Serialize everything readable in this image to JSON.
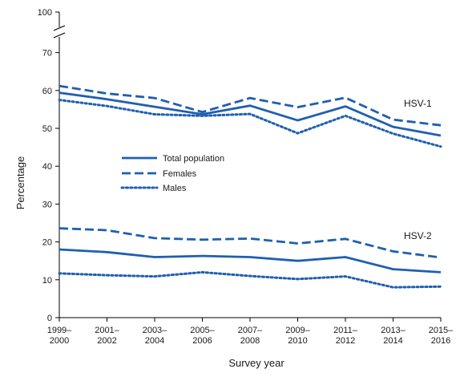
{
  "chart_data": {
    "type": "line",
    "xlabel": "Survey year",
    "ylabel": "Percentage",
    "categories": [
      [
        "1999–",
        "2000"
      ],
      [
        "2001–",
        "2002"
      ],
      [
        "2003–",
        "2004"
      ],
      [
        "2005–",
        "2006"
      ],
      [
        "2007–",
        "2008"
      ],
      [
        "2009–",
        "2010"
      ],
      [
        "2011–",
        "2012"
      ],
      [
        "2013–",
        "2014"
      ],
      [
        "2015–",
        "2016"
      ]
    ],
    "y_ticks": [
      0,
      10,
      20,
      30,
      40,
      50,
      60,
      70,
      100
    ],
    "y_axis_break": [
      70,
      100
    ],
    "ylim": [
      0,
      100
    ],
    "grid": false,
    "legend": {
      "placement": "center-left",
      "entries": [
        {
          "label": "Total population",
          "style": "solid"
        },
        {
          "label": "Females",
          "style": "dashed"
        },
        {
          "label": "Males",
          "style": "dotted"
        }
      ]
    },
    "groups": [
      {
        "label": "HSV-1",
        "series": [
          {
            "name": "Total population",
            "style": "solid",
            "values": [
              59.4,
              57.7,
              55.7,
              53.7,
              56.0,
              52.1,
              55.8,
              50.4,
              48.1
            ]
          },
          {
            "name": "Females",
            "style": "dashed",
            "values": [
              61.2,
              59.2,
              58.0,
              54.3,
              58.0,
              55.6,
              58.1,
              52.3,
              50.8
            ]
          },
          {
            "name": "Males",
            "style": "dotted",
            "values": [
              57.5,
              55.9,
              53.7,
              53.3,
              53.8,
              48.7,
              53.3,
              48.6,
              45.2
            ]
          }
        ]
      },
      {
        "label": "HSV-2",
        "series": [
          {
            "name": "Total population",
            "style": "solid",
            "values": [
              18.0,
              17.3,
              16.0,
              16.3,
              16.0,
              15.0,
              16.0,
              12.8,
              12.0
            ]
          },
          {
            "name": "Females",
            "style": "dashed",
            "values": [
              23.6,
              23.1,
              21.0,
              20.6,
              20.9,
              19.6,
              20.8,
              17.5,
              15.9
            ]
          },
          {
            "name": "Males",
            "style": "dotted",
            "values": [
              11.7,
              11.2,
              10.9,
              12.0,
              11.0,
              10.2,
              10.9,
              8.0,
              8.2
            ]
          }
        ]
      }
    ],
    "colors": {
      "line": "#1f5fb0",
      "axis": "#000000",
      "text": "#1a1a1a"
    }
  }
}
